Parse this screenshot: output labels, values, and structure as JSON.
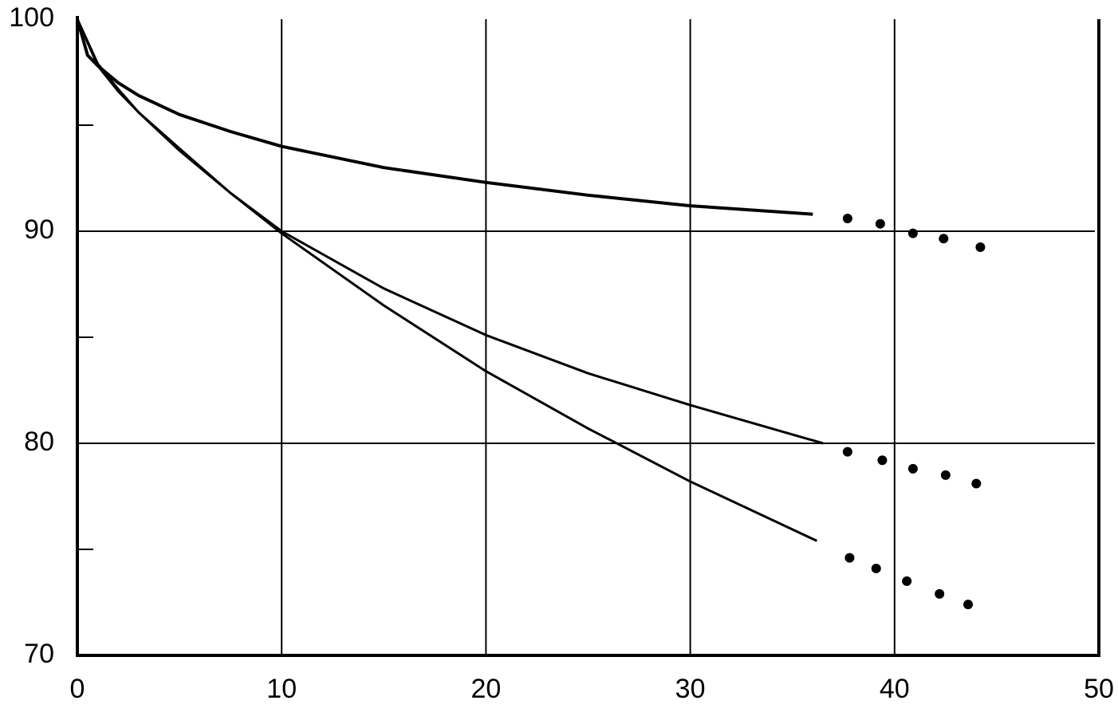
{
  "chart_data": {
    "type": "line",
    "xlim": [
      0,
      50
    ],
    "xticks": [
      0,
      10,
      20,
      30,
      40,
      50
    ],
    "ylim": [
      70,
      100
    ],
    "yticks": [
      70,
      80,
      90,
      100
    ],
    "yminorticks": [
      75,
      85,
      95
    ],
    "grid": true,
    "series": [
      {
        "type": "line",
        "color": "#000000",
        "x": [
          0,
          0.5,
          1,
          2,
          3,
          5,
          7.5,
          10,
          15,
          20,
          25,
          30,
          36
        ],
        "values": [
          100,
          98.3,
          97.8,
          97.0,
          96.4,
          95.5,
          94.7,
          94.0,
          93.0,
          92.3,
          91.7,
          91.2,
          90.8
        ]
      },
      {
        "type": "line",
        "color": "#000000",
        "x": [
          0,
          1,
          2,
          3,
          5,
          7.5,
          10,
          15,
          20,
          25,
          30,
          36.5
        ],
        "values": [
          100,
          97.8,
          96.6,
          95.6,
          93.9,
          91.8,
          90,
          87.3,
          85.1,
          83.3,
          81.8,
          80
        ]
      },
      {
        "type": "line",
        "color": "#000000",
        "x": [
          0,
          1,
          2,
          3,
          5,
          7.5,
          10,
          15,
          20,
          25,
          30,
          36.2
        ],
        "values": [
          100,
          97.9,
          96.7,
          95.6,
          93.8,
          91.8,
          89.9,
          86.5,
          83.4,
          80.7,
          78.2,
          75.4
        ]
      },
      {
        "type": "scatter",
        "color": "#000000",
        "x": [
          37.7,
          39.3,
          40.9,
          42.4,
          44.2
        ],
        "values": [
          90.6,
          90.35,
          89.9,
          89.65,
          89.25
        ]
      },
      {
        "type": "scatter",
        "color": "#000000",
        "x": [
          37.7,
          39.4,
          40.9,
          42.5,
          44.0
        ],
        "values": [
          79.6,
          79.2,
          78.8,
          78.5,
          78.1
        ]
      },
      {
        "type": "scatter",
        "color": "#000000",
        "x": [
          37.8,
          39.1,
          40.6,
          42.2,
          43.6
        ],
        "values": [
          74.6,
          74.1,
          73.5,
          72.9,
          72.4
        ]
      }
    ]
  }
}
